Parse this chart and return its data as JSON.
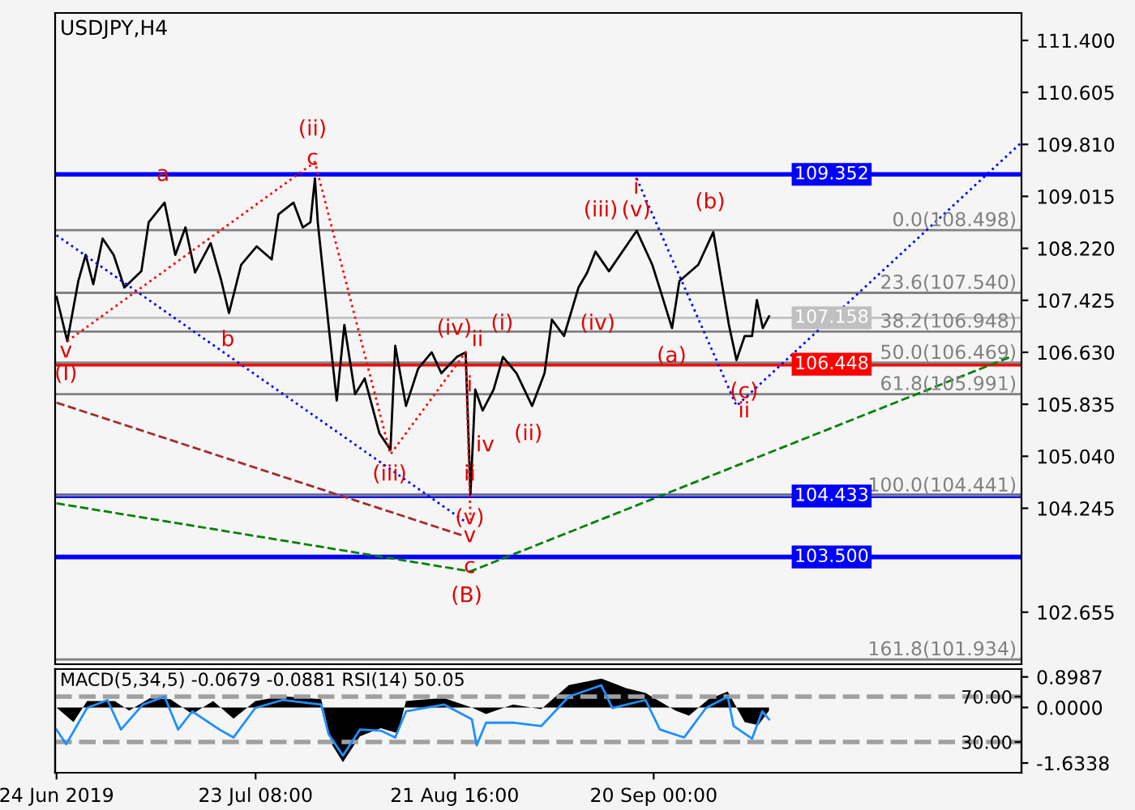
{
  "chart_data": [
    {
      "type": "line",
      "title": "USDJPY,H4",
      "tick_labels": "y",
      "grid": false,
      "legend": false,
      "xlim": [
        "2019-06-23T19:00",
        "2019-11-13T05:00"
      ],
      "ylim": [
        101.86,
        111.82
      ],
      "yticks": [
        {
          "value": 111.4,
          "label": "111.400"
        },
        {
          "value": 110.605,
          "label": "110.605"
        },
        {
          "value": 109.81,
          "label": "109.810"
        },
        {
          "value": 109.015,
          "label": "109.015"
        },
        {
          "value": 108.22,
          "label": "108.220"
        },
        {
          "value": 107.425,
          "label": "107.425"
        },
        {
          "value": 106.63,
          "label": "106.630"
        },
        {
          "value": 105.835,
          "label": "105.835"
        },
        {
          "value": 105.04,
          "label": "105.040"
        },
        {
          "value": 104.245,
          "label": "104.245"
        },
        {
          "value": 102.655,
          "label": "102.655"
        }
      ],
      "series": [
        {
          "color": "#000000",
          "line_style": "solid",
          "x": [
            "2019-06-24T00:00",
            "2019-06-25T14:00",
            "2019-06-27T05:00",
            "2019-06-28T07:00",
            "2019-06-29T10:00",
            "2019-06-30T19:00",
            "2019-07-02T10:00",
            "2019-07-04T00:00",
            "2019-07-06T12:00",
            "2019-07-07T14:00",
            "2019-07-09T22:00",
            "2019-07-11T12:00",
            "2019-07-13T00:00",
            "2019-07-14T10:00",
            "2019-07-16T17:00",
            "2019-07-18T07:00",
            "2019-07-19T10:00",
            "2019-07-21T05:00",
            "2019-07-23T12:00",
            "2019-07-25T17:00",
            "2019-07-26T17:00",
            "2019-07-28T22:00",
            "2019-07-30T07:00",
            "2019-07-31T10:00",
            "2019-08-01T02:00",
            "2019-08-01T12:00",
            "2019-08-03T02:00",
            "2019-08-04T07:00",
            "2019-08-05T10:00",
            "2019-08-07T00:00",
            "2019-08-08T10:00",
            "2019-08-10T14:00",
            "2019-08-12T05:00",
            "2019-08-12T22:00",
            "2019-08-14T12:00",
            "2019-08-16T07:00",
            "2019-08-18T07:00",
            "2019-08-19T17:00",
            "2019-08-22T00:00",
            "2019-08-23T07:00",
            "2019-08-24T00:00",
            "2019-08-24T17:00",
            "2019-08-25T19:00",
            "2019-08-27T10:00",
            "2019-08-28T19:00",
            "2019-08-30T19:00",
            "2019-09-02T02:00",
            "2019-09-03T22:00",
            "2019-09-05T00:00",
            "2019-09-06T19:00",
            "2019-09-08T22:00",
            "2019-09-10T05:00",
            "2019-09-11T10:00",
            "2019-09-13T10:00",
            "2019-09-15T22:00",
            "2019-09-17T12:00",
            "2019-09-19T19:00",
            "2019-09-20T22:00",
            "2019-09-22T17:00",
            "2019-09-23T19:00",
            "2019-09-26T14:00",
            "2019-09-28T19:00",
            "2019-09-30T00:00",
            "2019-10-01T02:00",
            "2019-10-02T05:00",
            "2019-10-03T10:00",
            "2019-10-04T12:00",
            "2019-10-05T05:00",
            "2019-10-06T02:00",
            "2019-10-07T00:00"
          ],
          "values": [
            107.48,
            106.8,
            107.72,
            108.12,
            107.67,
            108.37,
            108.12,
            107.62,
            107.87,
            108.62,
            108.92,
            108.12,
            108.54,
            107.85,
            108.3,
            107.72,
            107.23,
            107.97,
            108.25,
            108.05,
            108.74,
            108.92,
            108.54,
            108.62,
            109.29,
            108.62,
            107.05,
            105.89,
            107.05,
            105.99,
            106.23,
            105.39,
            105.14,
            106.73,
            105.81,
            106.38,
            106.63,
            106.31,
            106.56,
            106.63,
            104.46,
            106.06,
            105.74,
            106.06,
            106.56,
            106.31,
            105.81,
            106.31,
            107.13,
            106.88,
            107.62,
            107.85,
            108.17,
            107.87,
            108.25,
            108.49,
            107.97,
            107.6,
            107.0,
            107.72,
            107.97,
            108.47,
            107.72,
            107.05,
            106.51,
            106.88,
            106.88,
            107.43,
            107.0,
            107.18
          ]
        },
        {
          "type": "line",
          "color": "#0000ff",
          "line_style": "dotted",
          "x": [
            "2019-06-24T00:00",
            "2019-08-23T12:00",
            "2019-09-02T00:00",
            "2019-09-17T12:00",
            "2019-10-02T05:00",
            "2019-11-13T05:00"
          ],
          "values": [
            108.42,
            104.02,
            null,
            109.29,
            105.81,
            109.84
          ]
        },
        {
          "type": "line",
          "color": "#008000",
          "line_style": "dashed",
          "x": [
            "2019-06-24T00:00",
            "2019-08-24T00:00",
            "2019-11-11T14:00"
          ],
          "values": [
            104.32,
            103.28,
            106.56
          ]
        },
        {
          "type": "line",
          "color": "#a52a2a",
          "line_style": "dashed",
          "x": [
            "2019-06-24T00:00",
            "2019-08-23T02:00"
          ],
          "values": [
            105.86,
            103.82
          ]
        },
        {
          "type": "line",
          "color": "#ff0000",
          "line_style": "dotted",
          "x": [
            "2019-06-25T14:00",
            "2019-08-01T02:00",
            "2019-08-12T05:00",
            "2019-08-23T07:00",
            "2019-08-24T00:00"
          ],
          "values": [
            106.8,
            109.54,
            105.07,
            106.63,
            104.07
          ]
        }
      ],
      "ref_lines": [
        {
          "axis": "y",
          "value": 108.498,
          "label": "0.0(108.498)",
          "color": "#808080"
        },
        {
          "axis": "y",
          "value": 107.54,
          "label": "23.6(107.540)",
          "color": "#808080"
        },
        {
          "axis": "y",
          "value": 106.948,
          "label": "38.2(106.948)",
          "color": "#808080"
        },
        {
          "axis": "y",
          "value": 106.469,
          "label": "50.0(106.469)",
          "color": "#808080"
        },
        {
          "axis": "y",
          "value": 105.991,
          "label": "61.8(105.991)",
          "color": "#808080"
        },
        {
          "axis": "y",
          "value": 104.441,
          "label": "100.0(104.441)",
          "color": "#808080"
        },
        {
          "axis": "y",
          "value": 101.934,
          "label": "161.8(101.934)",
          "color": "#808080"
        },
        {
          "axis": "y",
          "value": 107.158,
          "label": "107.158",
          "color": "#c0c0c0"
        },
        {
          "axis": "y",
          "value": 109.352,
          "label": "109.352",
          "color": "#0000ff"
        },
        {
          "axis": "y",
          "value": 106.448,
          "label": "106.448",
          "color": "#ff0000"
        },
        {
          "axis": "y",
          "value": 104.433,
          "label": "104.433",
          "color": "#0000ff"
        },
        {
          "axis": "y",
          "value": 103.5,
          "label": "103.500",
          "color": "#0000ff"
        }
      ],
      "annotations": [
        "(I)",
        "v",
        "a",
        "b",
        "c",
        "(ii)",
        "(iii)",
        "(iv)",
        "ii",
        "i",
        "iv",
        "ii",
        "(v)",
        "v",
        "c",
        "(B)",
        "(i)",
        "(ii)",
        "(iii)",
        "(iv)",
        "(v)",
        "i",
        "(b)",
        "(a)",
        "(c)",
        "ii"
      ]
    },
    {
      "type": "area",
      "title": "MACD(5,34,5) -0.0679 -0.0881 RSI(14) 50.05",
      "grid": false,
      "legend": false,
      "xlim": [
        "2019-06-23T19:00",
        "2019-11-13T05:00"
      ],
      "ylim": [
        -1.92,
        1.13
      ],
      "y2lim": [
        2.9,
        94.3
      ],
      "xticks": [
        {
          "value": "2019-06-24T00:00",
          "label": "24 Jun 2019"
        },
        {
          "value": "2019-07-23T08:00",
          "label": "23 Jul 08:00"
        },
        {
          "value": "2019-08-21T16:00",
          "label": "21 Aug 16:00"
        },
        {
          "value": "2019-09-20T00:00",
          "label": "20 Sep 00:00"
        }
      ],
      "yticks": [
        {
          "value": 0.8987,
          "label": "0.8987"
        },
        {
          "value": 0,
          "label": "0.0000"
        },
        {
          "value": -1.6338,
          "label": "-1.6338"
        }
      ],
      "y2ticks": [
        {
          "value": 70,
          "label": "70.00"
        },
        {
          "value": 30,
          "label": "30.00"
        }
      ],
      "series": [
        {
          "color": "#000000",
          "x": [
            "2019-06-24T00:00",
            "2019-06-26T12:00",
            "2019-06-28T12:00",
            "2019-07-02T14:00",
            "2019-07-04T17:00",
            "2019-07-07T19:00",
            "2019-07-10T19:00",
            "2019-07-14T00:00",
            "2019-07-17T02:00",
            "2019-07-20T02:00",
            "2019-07-23T07:00",
            "2019-07-27T07:00",
            "2019-08-02T00:00",
            "2019-08-03T14:00",
            "2019-08-05T05:00",
            "2019-08-07T17:00",
            "2019-08-10T19:00",
            "2019-08-13T07:00",
            "2019-08-14T12:00",
            "2019-08-20T02:00",
            "2019-08-24T05:00",
            "2019-08-26T07:00",
            "2019-08-30T07:00",
            "2019-09-03T10:00",
            "2019-09-07T12:00",
            "2019-09-12T07:00",
            "2019-09-15T22:00",
            "2019-09-18T19:00",
            "2019-09-23T05:00",
            "2019-09-25T05:00",
            "2019-09-28T02:00",
            "2019-09-30T22:00",
            "2019-10-03T10:00",
            "2019-10-05T10:00",
            "2019-10-07T00:00"
          ],
          "values": [
            0,
            -0.43,
            0.19,
            0.19,
            -0.09,
            0.28,
            0.24,
            -0.19,
            0.19,
            -0.33,
            0.19,
            0.33,
            0.24,
            -1.09,
            -1.61,
            -0.85,
            -0.61,
            -0.76,
            0.19,
            0.28,
            0,
            -0.19,
            0.09,
            -0.05,
            0.66,
            0.85,
            0.57,
            0.43,
            -0.09,
            -0.24,
            0.24,
            0.47,
            -0.43,
            -0.52,
            -0.09
          ]
        },
        {
          "type": "line",
          "axis": "y2",
          "color": "#1e90ff",
          "x": [
            "2019-06-24T00:00",
            "2019-06-25T10:00",
            "2019-06-28T12:00",
            "2019-07-01T12:00",
            "2019-07-03T12:00",
            "2019-07-06T17:00",
            "2019-07-09T22:00",
            "2019-07-11T22:00",
            "2019-07-14T00:00",
            "2019-07-18T00:00",
            "2019-07-20T02:00",
            "2019-07-23T07:00",
            "2019-07-27T07:00",
            "2019-08-02T00:00",
            "2019-08-03T02:00",
            "2019-08-05T05:00",
            "2019-08-07T17:00",
            "2019-08-10T19:00",
            "2019-08-12T22:00",
            "2019-08-14T12:00",
            "2019-08-20T02:00",
            "2019-08-24T05:00",
            "2019-08-24T22:00",
            "2019-08-26T07:00",
            "2019-08-30T07:00",
            "2019-09-03T10:00",
            "2019-09-07T12:00",
            "2019-09-12T07:00",
            "2019-09-13T22:00",
            "2019-09-18T19:00",
            "2019-09-20T22:00",
            "2019-09-24T12:00",
            "2019-09-27T17:00",
            "2019-09-30T22:00",
            "2019-10-01T19:00",
            "2019-10-04T12:00",
            "2019-10-06T00:00",
            "2019-10-07T00:00"
          ],
          "values": [
            41,
            28,
            60,
            67,
            41,
            63,
            70,
            41,
            57,
            41,
            34,
            60,
            67,
            63,
            37,
            18,
            41,
            40,
            34,
            57,
            63,
            50,
            27,
            47,
            47,
            44,
            70,
            80,
            60,
            67,
            41,
            34,
            60,
            70,
            44,
            33,
            57,
            50
          ]
        }
      ],
      "ref_lines": [
        {
          "axis": "y2",
          "value": 70,
          "color": "#a0a0a0",
          "line_style": "dashed"
        },
        {
          "axis": "y2",
          "value": 30,
          "color": "#a0a0a0",
          "line_style": "dashed"
        }
      ]
    }
  ]
}
